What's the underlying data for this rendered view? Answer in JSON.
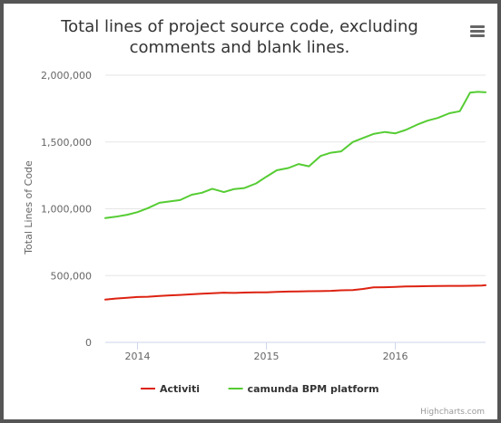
{
  "chart_data": {
    "type": "line",
    "title": "Total lines of project source code, excluding comments and blank lines.",
    "title_lines": [
      "Total lines of project source code, excluding",
      "comments and blank lines."
    ],
    "ylabel": "Total Lines of Code",
    "xlabel": "",
    "ylim": [
      0,
      2000000
    ],
    "y_ticks": [
      0,
      500000,
      1000000,
      1500000,
      2000000
    ],
    "y_tick_labels": [
      "0",
      "500,000",
      "1,000,000",
      "1,500,000",
      "2,000,000"
    ],
    "xlim": [
      2013.75,
      2016.7
    ],
    "x_ticks": [
      2014,
      2015,
      2016
    ],
    "x_tick_labels": [
      "2014",
      "2015",
      "2016"
    ],
    "grid": true,
    "legend_position": "bottom",
    "series": [
      {
        "name": "Activiti",
        "color": "#dd2211",
        "x": [
          2013.75,
          2013.83,
          2013.92,
          2014.0,
          2014.08,
          2014.17,
          2014.25,
          2014.33,
          2014.42,
          2014.5,
          2014.58,
          2014.67,
          2014.75,
          2014.83,
          2014.92,
          2015.0,
          2015.08,
          2015.17,
          2015.25,
          2015.33,
          2015.42,
          2015.5,
          2015.58,
          2015.67,
          2015.75,
          2015.83,
          2015.92,
          2016.0,
          2016.08,
          2016.17,
          2016.25,
          2016.33,
          2016.42,
          2016.5,
          2016.58,
          2016.67,
          2016.7
        ],
        "values": [
          320000,
          328000,
          334000,
          340000,
          342000,
          348000,
          352000,
          355000,
          360000,
          365000,
          368000,
          372000,
          370000,
          373000,
          374000,
          374000,
          378000,
          380000,
          382000,
          383000,
          384000,
          386000,
          390000,
          392000,
          400000,
          412000,
          413000,
          415000,
          418000,
          420000,
          421000,
          422000,
          423000,
          423000,
          424000,
          426000,
          428000
        ]
      },
      {
        "name": "camunda BPM platform",
        "color": "#55cc33",
        "x": [
          2013.75,
          2013.83,
          2013.92,
          2014.0,
          2014.08,
          2014.17,
          2014.25,
          2014.33,
          2014.42,
          2014.5,
          2014.58,
          2014.67,
          2014.75,
          2014.83,
          2014.92,
          2015.0,
          2015.08,
          2015.17,
          2015.25,
          2015.33,
          2015.42,
          2015.5,
          2015.58,
          2015.67,
          2015.75,
          2015.83,
          2015.92,
          2016.0,
          2016.08,
          2016.17,
          2016.25,
          2016.33,
          2016.42,
          2016.5,
          2016.58,
          2016.64,
          2016.7
        ],
        "values": [
          930000,
          940000,
          955000,
          975000,
          1005000,
          1045000,
          1055000,
          1065000,
          1105000,
          1120000,
          1150000,
          1125000,
          1148000,
          1155000,
          1190000,
          1240000,
          1288000,
          1305000,
          1335000,
          1318000,
          1395000,
          1420000,
          1430000,
          1500000,
          1530000,
          1560000,
          1575000,
          1565000,
          1590000,
          1630000,
          1660000,
          1680000,
          1715000,
          1730000,
          1870000,
          1875000,
          1872000
        ]
      }
    ]
  },
  "credits": "Highcharts.com",
  "menu_icon": "hamburger-menu-icon"
}
